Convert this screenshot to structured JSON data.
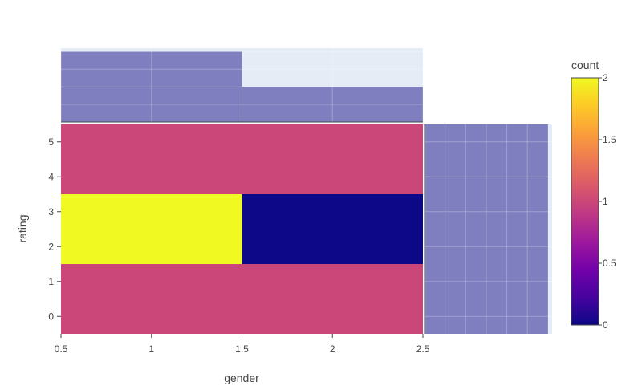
{
  "chart_data": {
    "type": "heatmap",
    "title": "",
    "xlabel": "gender",
    "ylabel": "rating",
    "colorbar_title": "count",
    "x_bins": [
      [
        0.5,
        1.5
      ],
      [
        1.5,
        2.5
      ]
    ],
    "y_bins": [
      [
        -0.5,
        1.5
      ],
      [
        1.5,
        3.5
      ],
      [
        3.5,
        5.5
      ]
    ],
    "z": [
      [
        1,
        1
      ],
      [
        2,
        0
      ],
      [
        1,
        1
      ]
    ],
    "xlim": [
      0.5,
      2.5
    ],
    "ylim": [
      -0.5,
      5.5
    ],
    "x_ticks": [
      0.5,
      1,
      1.5,
      2,
      2.5
    ],
    "x_tick_labels": [
      "0.5",
      "1",
      "1.5",
      "2",
      "2.5"
    ],
    "y_ticks": [
      0,
      1,
      2,
      3,
      4,
      5
    ],
    "y_tick_labels": [
      "0",
      "1",
      "2",
      "3",
      "4",
      "5"
    ],
    "colorbar_ticks": [
      0,
      0.5,
      1,
      1.5,
      2
    ],
    "colorbar_tick_labels": [
      "0",
      "0.5",
      "1",
      "1.5",
      "2"
    ],
    "colorscale": [
      "#0d0887",
      "#46039f",
      "#7201a8",
      "#9c179e",
      "#bd3786",
      "#d8576b",
      "#ed7953",
      "#fb9f3a",
      "#fdca26",
      "#f0f921"
    ],
    "marginal_x": {
      "type": "histogram",
      "bins": [
        [
          0.5,
          1.5
        ],
        [
          1.5,
          2.5
        ]
      ],
      "values": [
        4,
        2
      ],
      "ylim": [
        0,
        4.2
      ],
      "color": "#7f7fbf"
    },
    "marginal_y": {
      "type": "histogram",
      "bins": [
        [
          -0.5,
          5.5
        ]
      ],
      "values": [
        6
      ],
      "xlim": [
        0,
        6.2
      ],
      "color": "#7f7fbf"
    },
    "grid": true
  }
}
